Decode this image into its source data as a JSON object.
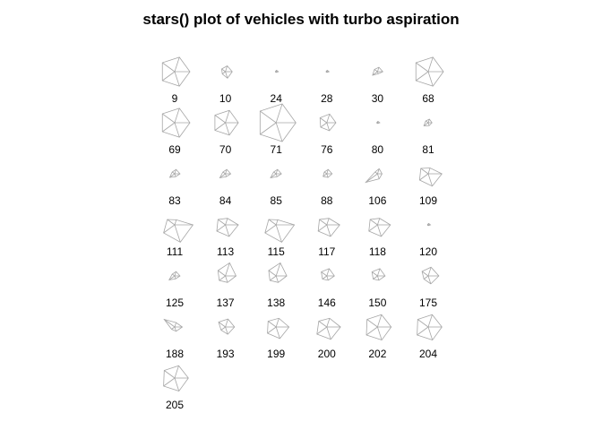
{
  "chart_data": {
    "type": "stars",
    "title": "stars() plot of vehicles with turbo aspiration",
    "columns": 6,
    "variables": 5,
    "stars": [
      {
        "label": "9",
        "values": [
          1.0,
          1.0,
          1.0,
          1.0,
          1.0
        ]
      },
      {
        "label": "10",
        "values": [
          0.45,
          0.45,
          0.25,
          0.3,
          0.4
        ]
      },
      {
        "label": "24",
        "values": [
          0.15,
          0.05,
          0.05,
          0.05,
          0.1
        ]
      },
      {
        "label": "28",
        "values": [
          0.15,
          0.05,
          0.05,
          0.05,
          0.1
        ]
      },
      {
        "label": "30",
        "values": [
          0.35,
          0.15,
          0.4,
          0.25,
          0.3
        ]
      },
      {
        "label": "68",
        "values": [
          1.0,
          1.0,
          1.0,
          1.0,
          1.0
        ]
      },
      {
        "label": "69",
        "values": [
          1.0,
          1.0,
          1.0,
          1.0,
          1.0
        ]
      },
      {
        "label": "70",
        "values": [
          0.85,
          0.85,
          0.85,
          0.85,
          0.85
        ]
      },
      {
        "label": "71",
        "values": [
          1.3,
          1.3,
          1.3,
          1.3,
          1.3
        ]
      },
      {
        "label": "76",
        "values": [
          0.6,
          0.55,
          0.5,
          0.55,
          0.6
        ]
      },
      {
        "label": "80",
        "values": [
          0.15,
          0.05,
          0.05,
          0.05,
          0.1
        ]
      },
      {
        "label": "81",
        "values": [
          0.25,
          0.2,
          0.35,
          0.2,
          0.25
        ]
      },
      {
        "label": "83",
        "values": [
          0.35,
          0.2,
          0.4,
          0.2,
          0.3
        ]
      },
      {
        "label": "84",
        "values": [
          0.35,
          0.2,
          0.45,
          0.2,
          0.3
        ]
      },
      {
        "label": "85",
        "values": [
          0.35,
          0.2,
          0.45,
          0.2,
          0.3
        ]
      },
      {
        "label": "88",
        "values": [
          0.35,
          0.25,
          0.3,
          0.2,
          0.3
        ]
      },
      {
        "label": "106",
        "values": [
          0.3,
          0.35,
          0.95,
          0.2,
          0.35
        ]
      },
      {
        "label": "109",
        "values": [
          0.9,
          0.85,
          0.7,
          0.6,
          0.4
        ]
      },
      {
        "label": "111",
        "values": [
          1.2,
          1.2,
          0.9,
          0.6,
          0.35
        ]
      },
      {
        "label": "113",
        "values": [
          0.85,
          0.8,
          0.7,
          0.6,
          0.45
        ]
      },
      {
        "label": "115",
        "values": [
          1.2,
          1.2,
          0.9,
          0.6,
          0.35
        ]
      },
      {
        "label": "117",
        "values": [
          0.85,
          0.8,
          0.7,
          0.6,
          0.45
        ]
      },
      {
        "label": "118",
        "values": [
          0.85,
          0.8,
          0.7,
          0.6,
          0.45
        ]
      },
      {
        "label": "120",
        "values": [
          0.15,
          0.05,
          0.05,
          0.05,
          0.1
        ]
      },
      {
        "label": "125",
        "values": [
          0.35,
          0.2,
          0.45,
          0.2,
          0.3
        ]
      },
      {
        "label": "137",
        "values": [
          0.7,
          0.45,
          0.5,
          0.6,
          0.9
        ]
      },
      {
        "label": "138",
        "values": [
          0.7,
          0.45,
          0.5,
          0.6,
          0.9
        ]
      },
      {
        "label": "146",
        "values": [
          0.5,
          0.3,
          0.35,
          0.45,
          0.5
        ]
      },
      {
        "label": "150",
        "values": [
          0.5,
          0.3,
          0.35,
          0.45,
          0.5
        ]
      },
      {
        "label": "175",
        "values": [
          0.7,
          0.55,
          0.35,
          0.5,
          0.6
        ]
      },
      {
        "label": "188",
        "values": [
          0.5,
          0.3,
          0.25,
          0.85,
          0.3
        ]
      },
      {
        "label": "193",
        "values": [
          0.6,
          0.5,
          0.35,
          0.55,
          0.55
        ]
      },
      {
        "label": "199",
        "values": [
          0.85,
          0.8,
          0.7,
          0.65,
          0.6
        ]
      },
      {
        "label": "200",
        "values": [
          0.9,
          0.85,
          0.8,
          0.65,
          0.6
        ]
      },
      {
        "label": "202",
        "values": [
          0.9,
          0.9,
          0.9,
          0.85,
          0.85
        ]
      },
      {
        "label": "204",
        "values": [
          0.9,
          0.9,
          0.9,
          0.85,
          0.85
        ]
      },
      {
        "label": "205",
        "values": [
          0.9,
          0.9,
          0.9,
          0.85,
          0.85
        ]
      }
    ]
  }
}
